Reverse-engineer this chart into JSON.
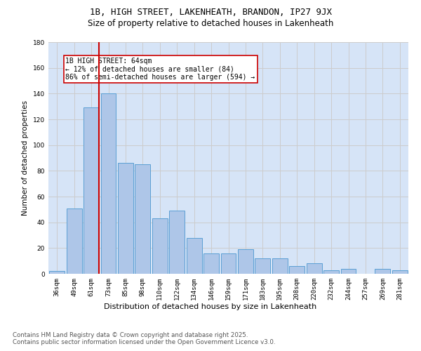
{
  "title1": "1B, HIGH STREET, LAKENHEATH, BRANDON, IP27 9JX",
  "title2": "Size of property relative to detached houses in Lakenheath",
  "xlabel": "Distribution of detached houses by size in Lakenheath",
  "ylabel": "Number of detached properties",
  "categories": [
    "36sqm",
    "49sqm",
    "61sqm",
    "73sqm",
    "85sqm",
    "98sqm",
    "110sqm",
    "122sqm",
    "134sqm",
    "146sqm",
    "159sqm",
    "171sqm",
    "183sqm",
    "195sqm",
    "208sqm",
    "220sqm",
    "232sqm",
    "244sqm",
    "257sqm",
    "269sqm",
    "281sqm"
  ],
  "values": [
    2,
    51,
    129,
    140,
    86,
    85,
    43,
    49,
    28,
    16,
    16,
    19,
    12,
    12,
    6,
    8,
    3,
    4,
    0,
    4,
    3
  ],
  "bar_color": "#aec6e8",
  "bar_edge_color": "#5a9fd4",
  "vline_x_index": 2,
  "vline_color": "#cc0000",
  "annotation_text": "1B HIGH STREET: 64sqm\n← 12% of detached houses are smaller (84)\n86% of semi-detached houses are larger (594) →",
  "annotation_box_color": "#ffffff",
  "annotation_box_edge": "#cc0000",
  "grid_color": "#cccccc",
  "background_color": "#d6e4f7",
  "ylim": [
    0,
    180
  ],
  "footer": "Contains HM Land Registry data © Crown copyright and database right 2025.\nContains public sector information licensed under the Open Government Licence v3.0.",
  "fig_bg_color": "#ffffff"
}
